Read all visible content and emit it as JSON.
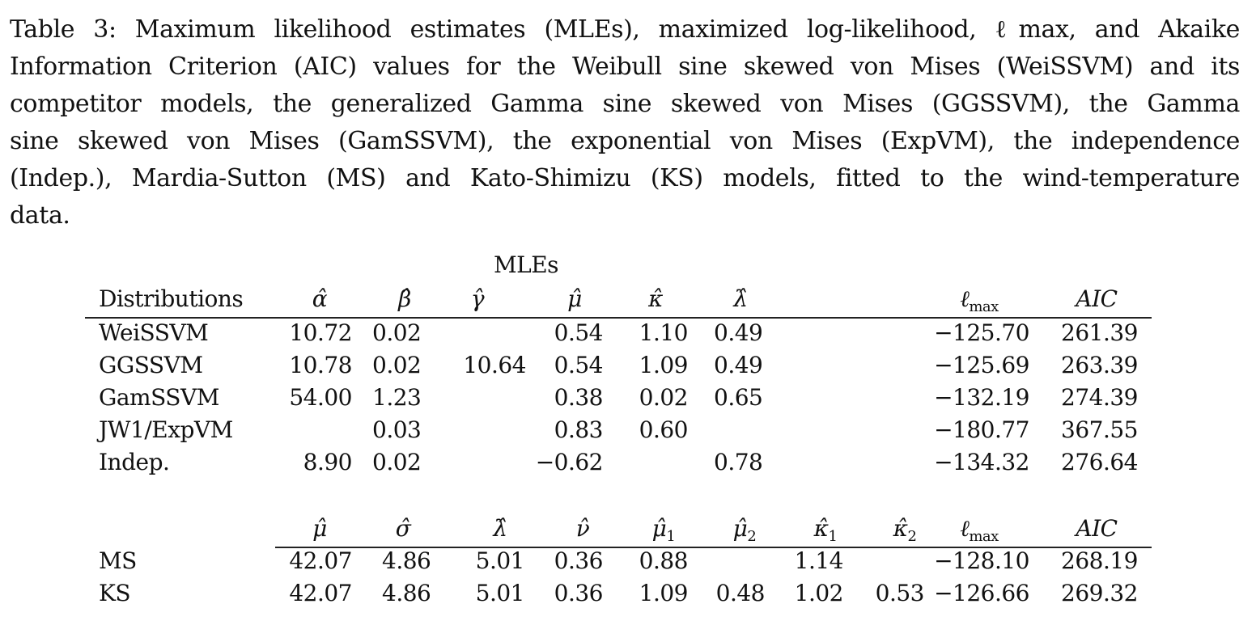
{
  "caption": {
    "lines": [
      "Table 3: Maximum likelihood estimates (MLEs), maximized log-likelihood, ℓmax, and Akaike",
      "Information Criterion (AIC) values for the Weibull sine skewed von Mises (WeiSSVM) and its",
      "competitor models, the generalized Gamma sine skewed von Mises (GGSSVM), the Gamma",
      "sine skewed von Mises (GamSSVM), the exponential von Mises (ExpVM), the independence",
      "(Indep.), Mardia-Sutton (MS) and Kato-Shimizu (KS) models, fitted to the wind-temperature",
      "data."
    ]
  },
  "table1": {
    "group_header": "MLEs",
    "headers": [
      "Distributions",
      "α̂",
      "β̂",
      "γ̂",
      "μ̂",
      "κ̂",
      "λ̂",
      "ℓmax",
      "AIC"
    ],
    "rows": [
      {
        "name": "WeiSSVM",
        "alpha": "10.72",
        "beta": "0.02",
        "gamma": "",
        "mu": "0.54",
        "kappa": "1.10",
        "lambda": "0.49",
        "lmax": "−125.70",
        "aic": "261.39"
      },
      {
        "name": "GGSSVM",
        "alpha": "10.78",
        "beta": "0.02",
        "gamma": "10.64",
        "mu": "0.54",
        "kappa": "1.09",
        "lambda": "0.49",
        "lmax": "−125.69",
        "aic": "263.39"
      },
      {
        "name": "GamSSVM",
        "alpha": "54.00",
        "beta": "1.23",
        "gamma": "",
        "mu": "0.38",
        "kappa": "0.02",
        "lambda": "0.65",
        "lmax": "−132.19",
        "aic": "274.39"
      },
      {
        "name": "JW1/ExpVM",
        "alpha": "",
        "beta": "0.03",
        "gamma": "",
        "mu": "0.83",
        "kappa": "0.60",
        "lambda": "",
        "lmax": "−180.77",
        "aic": "367.55"
      },
      {
        "name": "Indep.",
        "alpha": "8.90",
        "beta": "0.02",
        "gamma": "",
        "mu": "−0.62",
        "kappa": "",
        "lambda": "0.78",
        "lmax": "−134.32",
        "aic": "276.64"
      }
    ]
  },
  "table2": {
    "headers": [
      "μ̂",
      "σ̂",
      "λ̂",
      "ν̂",
      "μ̂1",
      "μ̂2",
      "κ̂1",
      "κ̂2",
      "ℓmax",
      "AIC"
    ],
    "rows": [
      {
        "name": "MS",
        "mu": "42.07",
        "sigma": "4.86",
        "lambda": "5.01",
        "nu": "0.36",
        "mu1": "0.88",
        "mu2": "",
        "kappa1": "1.14",
        "kappa2": "",
        "lmax": "−128.10",
        "aic": "268.19"
      },
      {
        "name": "KS",
        "mu": "42.07",
        "sigma": "4.86",
        "lambda": "5.01",
        "nu": "0.36",
        "mu1": "1.09",
        "mu2": "0.48",
        "kappa1": "1.02",
        "kappa2": "0.53",
        "lmax": "−126.66",
        "aic": "269.32"
      }
    ]
  }
}
